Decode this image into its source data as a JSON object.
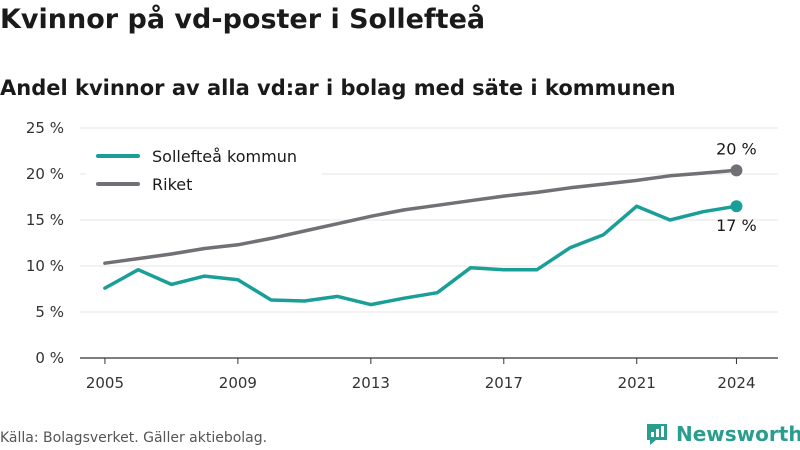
{
  "title": "Kvinnor på vd-poster i Sollefteå",
  "subtitle": "Andel kvinnor av alla vd:ar i bolag med säte i kommunen",
  "source": "Källa: Bolagsverket. Gäller aktiebolag.",
  "brand": "Newsworthy",
  "colors": {
    "kommun": "#1a9f98",
    "riket": "#707075",
    "grid": "#e4e4e4",
    "brand": "#2a9d8f"
  },
  "chart_data": {
    "type": "line",
    "x": [
      2005,
      2006,
      2007,
      2008,
      2009,
      2010,
      2011,
      2012,
      2013,
      2014,
      2015,
      2016,
      2017,
      2018,
      2019,
      2020,
      2021,
      2022,
      2023,
      2024
    ],
    "x_ticks": [
      {
        "value": 2005,
        "label": "2005"
      },
      {
        "value": 2009,
        "label": "2009"
      },
      {
        "value": 2013,
        "label": "2013"
      },
      {
        "value": 2017,
        "label": "2017"
      },
      {
        "value": 2021,
        "label": "2021"
      },
      {
        "value": 2024,
        "label": "2024"
      }
    ],
    "y_ticks": [
      {
        "value": 0,
        "label": "0 %"
      },
      {
        "value": 5,
        "label": "5 %"
      },
      {
        "value": 10,
        "label": "10 %"
      },
      {
        "value": 15,
        "label": "15 %"
      },
      {
        "value": 20,
        "label": "20 %"
      },
      {
        "value": 25,
        "label": "25 %"
      }
    ],
    "ylim": [
      0,
      25
    ],
    "grid": true,
    "legend_position": "top-left",
    "series": [
      {
        "name": "Sollefteå kommun",
        "color": "#1a9f98",
        "values": [
          7.6,
          9.6,
          8.0,
          8.9,
          8.5,
          6.3,
          6.2,
          6.7,
          5.8,
          6.5,
          7.1,
          9.8,
          9.6,
          9.6,
          12.0,
          13.4,
          16.5,
          15.0,
          15.9,
          16.5
        ],
        "end_label": "17 %"
      },
      {
        "name": "Riket",
        "color": "#707075",
        "values": [
          10.3,
          10.8,
          11.3,
          11.9,
          12.3,
          13.0,
          13.8,
          14.6,
          15.4,
          16.1,
          16.6,
          17.1,
          17.6,
          18.0,
          18.5,
          18.9,
          19.3,
          19.8,
          20.1,
          20.4
        ],
        "end_label": "20 %"
      }
    ]
  }
}
